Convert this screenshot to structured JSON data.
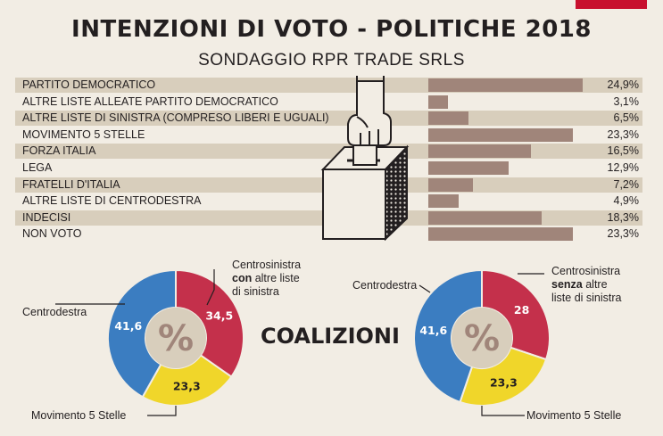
{
  "title": "INTENZIONI DI VOTO - POLITICHE 2018",
  "subtitle": "SONDAGGIO RPR TRADE SRLS",
  "colors": {
    "bar": "#a0857a",
    "stripe": "#d8cebc",
    "centrodestra": "#3b7dc1",
    "m5s": "#f0d62a",
    "centrosinistra": "#c4304b",
    "center": "#d8cebc"
  },
  "chart_data": [
    {
      "type": "bar",
      "orientation": "horizontal",
      "title": "INTENZIONI DI VOTO - POLITICHE 2018",
      "subtitle": "SONDAGGIO RPR TRADE SRLS",
      "categories": [
        "PARTITO DEMOCRATICO",
        "ALTRE LISTE ALLEATE PARTITO DEMOCRATICO",
        "ALTRE LISTE DI SINISTRA (COMPRESO LIBERI E UGUALI)",
        "MOVIMENTO 5 STELLE",
        "FORZA ITALIA",
        "LEGA",
        "FRATELLI D'ITALIA",
        "ALTRE LISTE DI CENTRODESTRA",
        "INDECISI",
        "NON VOTO"
      ],
      "values": [
        24.9,
        3.1,
        6.5,
        23.3,
        16.5,
        12.9,
        7.2,
        4.9,
        18.3,
        23.3
      ],
      "value_labels": [
        "24,9%",
        "3,1%",
        "6,5%",
        "23,3%",
        "16,5%",
        "12,9%",
        "7,2%",
        "4,9%",
        "18,3%",
        "23,3%"
      ],
      "xlim": [
        0,
        24.9
      ]
    },
    {
      "type": "pie",
      "title": "COALIZIONI",
      "center_label": "%",
      "slices": [
        {
          "label": "Centrosinistra con altre liste di sinistra",
          "value": 34.5,
          "value_label": "34,5",
          "color": "#c4304b"
        },
        {
          "label": "Movimento 5 Stelle",
          "value": 23.3,
          "value_label": "23,3",
          "color": "#f0d62a"
        },
        {
          "label": "Centrodestra",
          "value": 41.6,
          "value_label": "41,6",
          "color": "#3b7dc1"
        }
      ]
    },
    {
      "type": "pie",
      "title": "COALIZIONI",
      "center_label": "%",
      "slices": [
        {
          "label": "Centrosinistra senza altre liste di sinistra",
          "value": 28,
          "value_label": "28",
          "color": "#c4304b"
        },
        {
          "label": "Movimento 5 Stelle",
          "value": 23.3,
          "value_label": "23,3",
          "color": "#f0d62a"
        },
        {
          "label": "Centrodestra",
          "value": 41.6,
          "value_label": "41,6",
          "color": "#3b7dc1"
        }
      ]
    }
  ],
  "coalizioni_title": "COALIZIONI",
  "pie1_labels": {
    "centrosinistra_line1": "Centrosinistra",
    "centrosinistra_bold": "con",
    "centrosinistra_line2_rest": " altre liste",
    "centrosinistra_line3": "di sinistra",
    "centrodestra": "Centrodestra",
    "m5s": "Movimento 5 Stelle"
  },
  "pie2_labels": {
    "centrosinistra_line1": "Centrosinistra",
    "centrosinistra_bold": "senza",
    "centrosinistra_line2_rest": " altre",
    "centrosinistra_line3": "liste di sinistra",
    "centrodestra": "Centrodestra",
    "m5s": "Movimento 5 Stelle"
  }
}
